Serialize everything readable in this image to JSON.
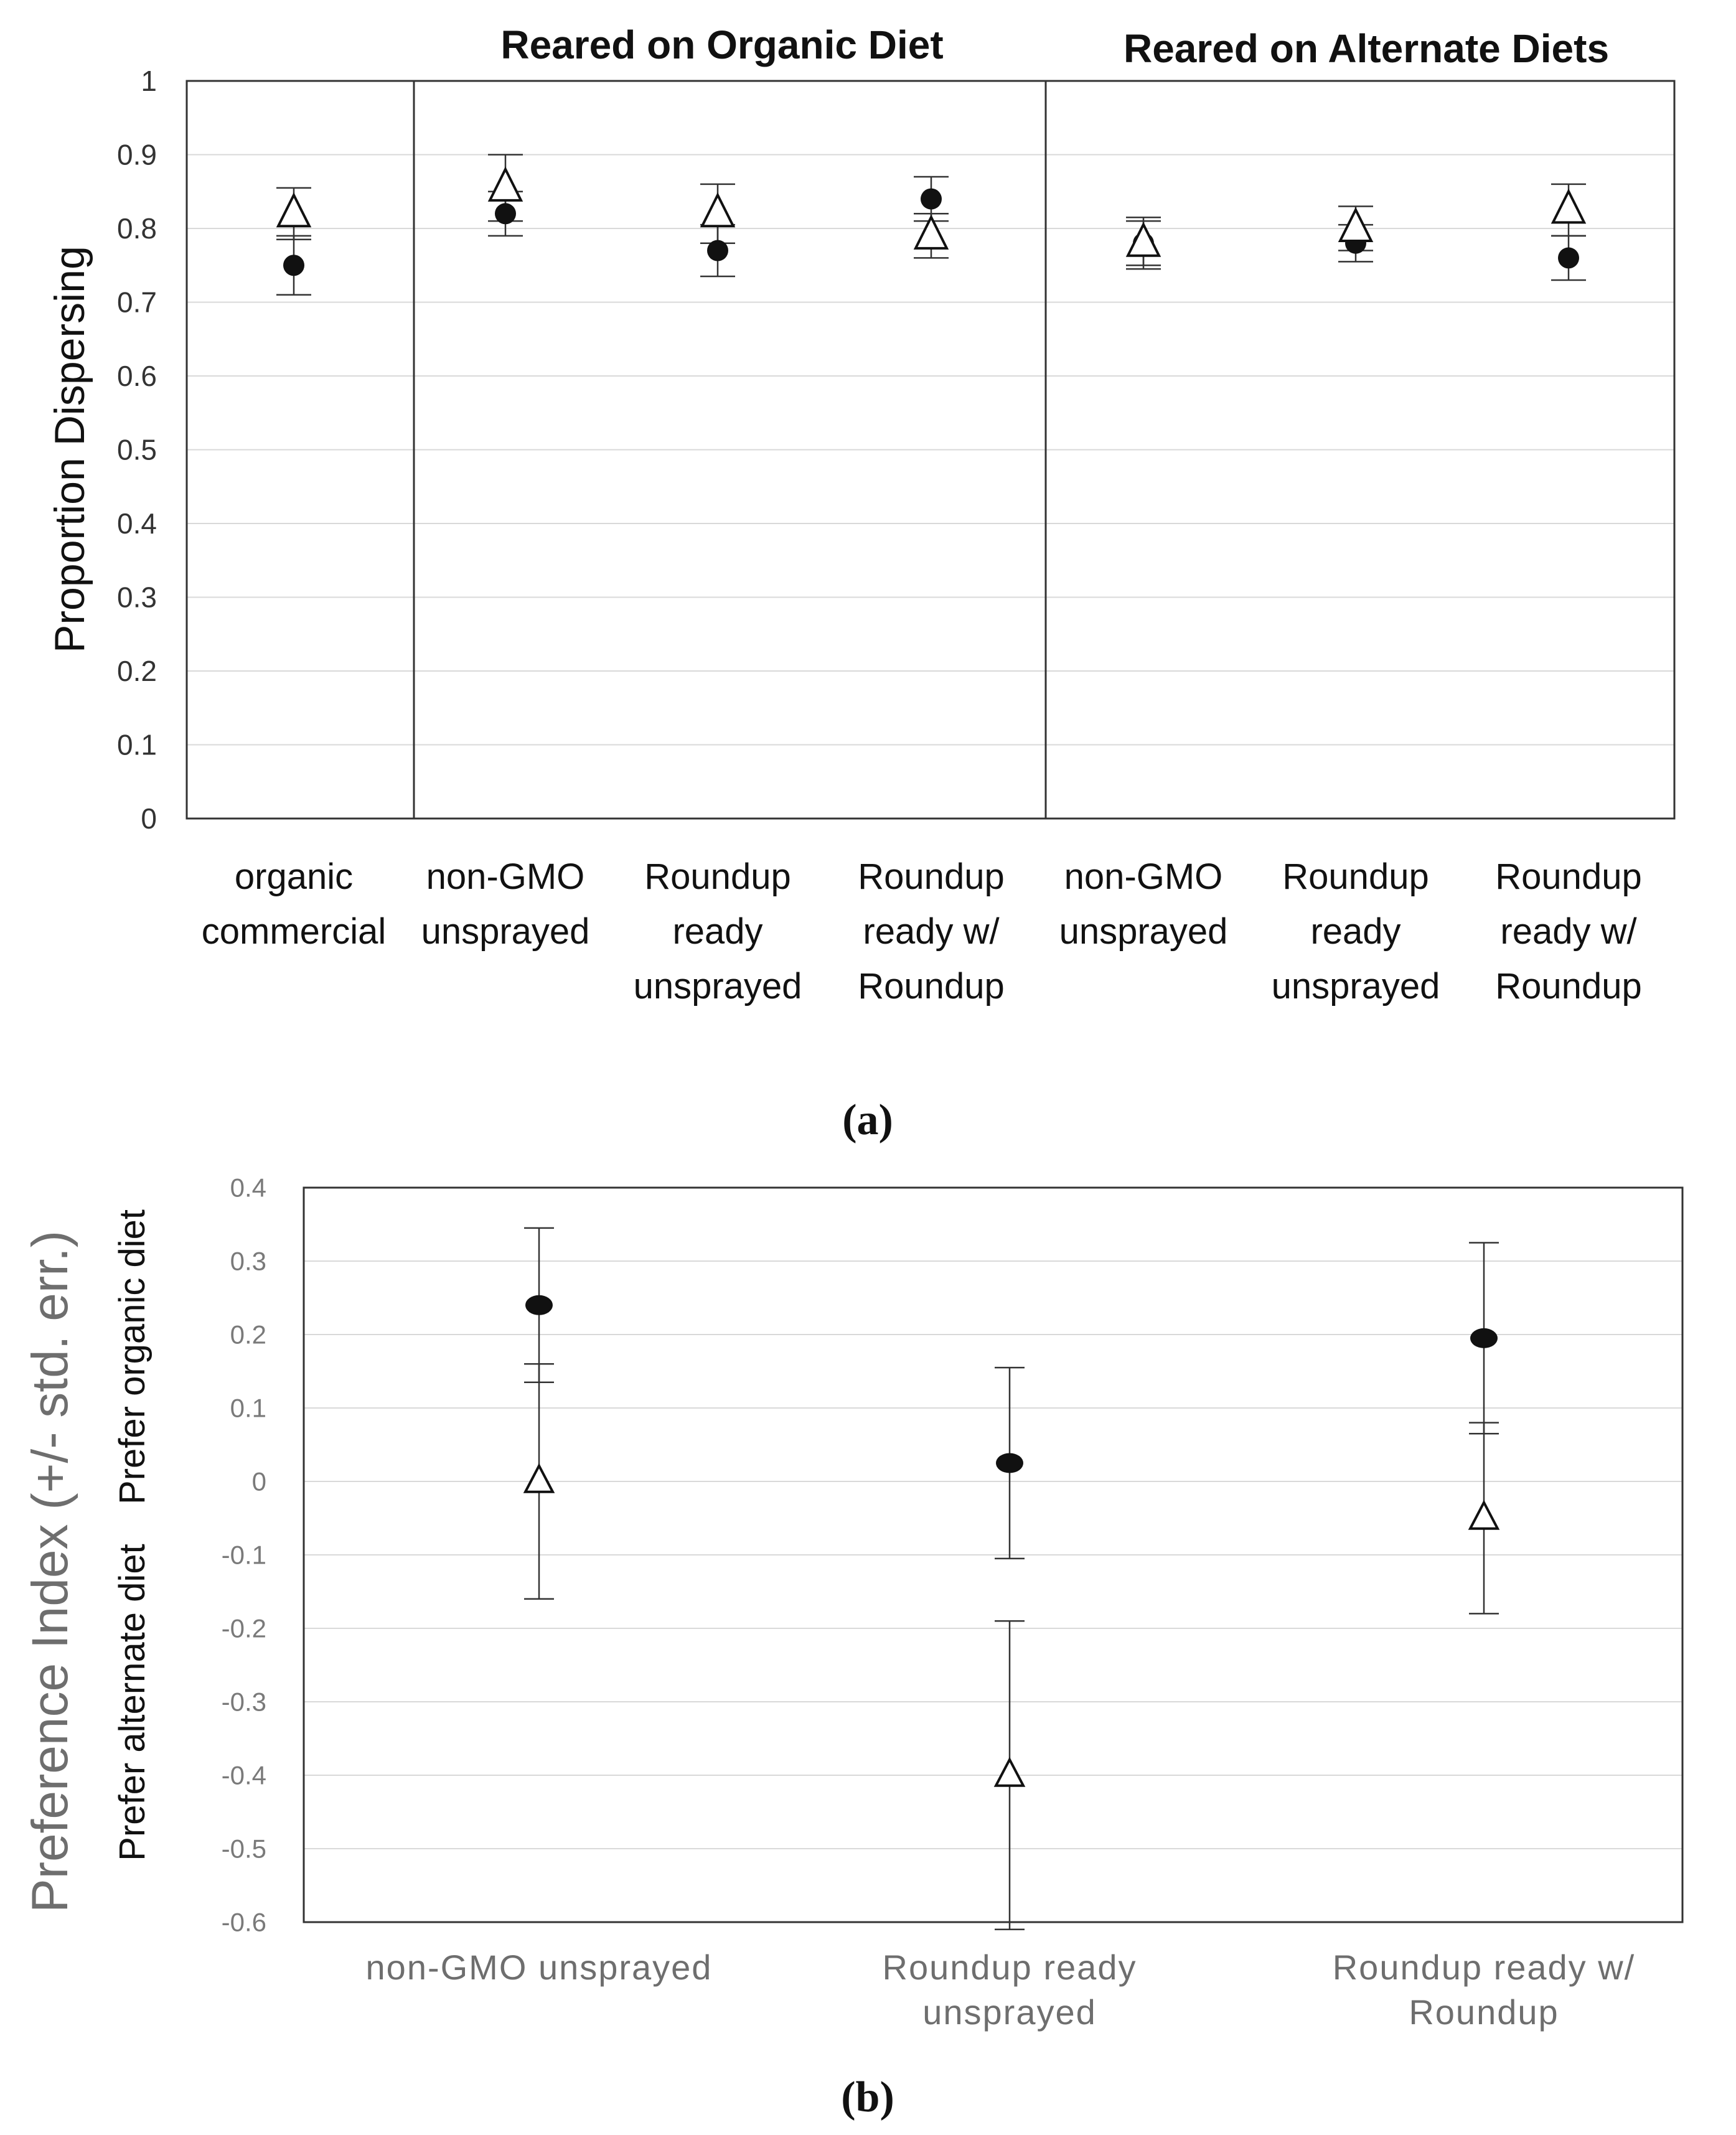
{
  "chart_data": [
    {
      "panel": "(a)",
      "type": "scatter",
      "ylabel": "Proportion Dispersing",
      "ylim": [
        0,
        1
      ],
      "yticks": [
        "0",
        "0.1",
        "0.2",
        "0.3",
        "0.4",
        "0.5",
        "0.6",
        "0.7",
        "0.8",
        "0.9",
        "1"
      ],
      "group_headers": [
        "Reared on Organic Diet",
        "Reared on Alternate Diets"
      ],
      "categories": [
        [
          "organic",
          "commercial"
        ],
        [
          "non-GMO",
          "unsprayed"
        ],
        [
          "Roundup",
          "ready",
          "unsprayed"
        ],
        [
          "Roundup",
          "ready w/",
          "Roundup"
        ],
        [
          "non-GMO",
          "unsprayed"
        ],
        [
          "Roundup",
          "ready",
          "unsprayed"
        ],
        [
          "Roundup",
          "ready w/",
          "Roundup"
        ]
      ],
      "series": [
        {
          "name": "circle",
          "marker": "filled-circle",
          "values": [
            0.75,
            0.82,
            0.77,
            0.84,
            0.78,
            0.78,
            0.76
          ],
          "err": [
            0.04,
            0.03,
            0.035,
            0.03,
            0.03,
            0.025,
            0.03
          ]
        },
        {
          "name": "triangle",
          "marker": "open-triangle",
          "values": [
            0.82,
            0.855,
            0.82,
            0.79,
            0.78,
            0.8,
            0.825
          ],
          "err": [
            0.035,
            0.045,
            0.04,
            0.03,
            0.035,
            0.03,
            0.035
          ]
        }
      ]
    },
    {
      "panel": "(b)",
      "type": "scatter",
      "ylabel": "Preference Index (+/- std. err.)",
      "ylabel_top": "Prefer organic diet",
      "ylabel_bottom": "Prefer alternate diet",
      "ylim": [
        -0.6,
        0.4
      ],
      "yticks": [
        "0.4",
        "0.3",
        "0.2",
        "0.1",
        "0",
        "-0.1",
        "-0.2",
        "-0.3",
        "-0.4",
        "-0.5",
        "-0.6"
      ],
      "categories": [
        [
          "non-GMO unsprayed"
        ],
        [
          "Roundup ready",
          "unsprayed"
        ],
        [
          "Roundup ready w/",
          "Roundup"
        ]
      ],
      "series": [
        {
          "name": "circle",
          "marker": "filled-circle",
          "values": [
            0.24,
            0.025,
            0.195
          ],
          "err": [
            0.105,
            0.13,
            0.13
          ]
        },
        {
          "name": "triangle",
          "marker": "open-triangle",
          "values": [
            0.0,
            -0.4,
            -0.05
          ],
          "err": [
            0.16,
            0.21,
            0.13
          ]
        }
      ]
    }
  ],
  "captions": {
    "a": "(a)",
    "b": "(b)"
  }
}
